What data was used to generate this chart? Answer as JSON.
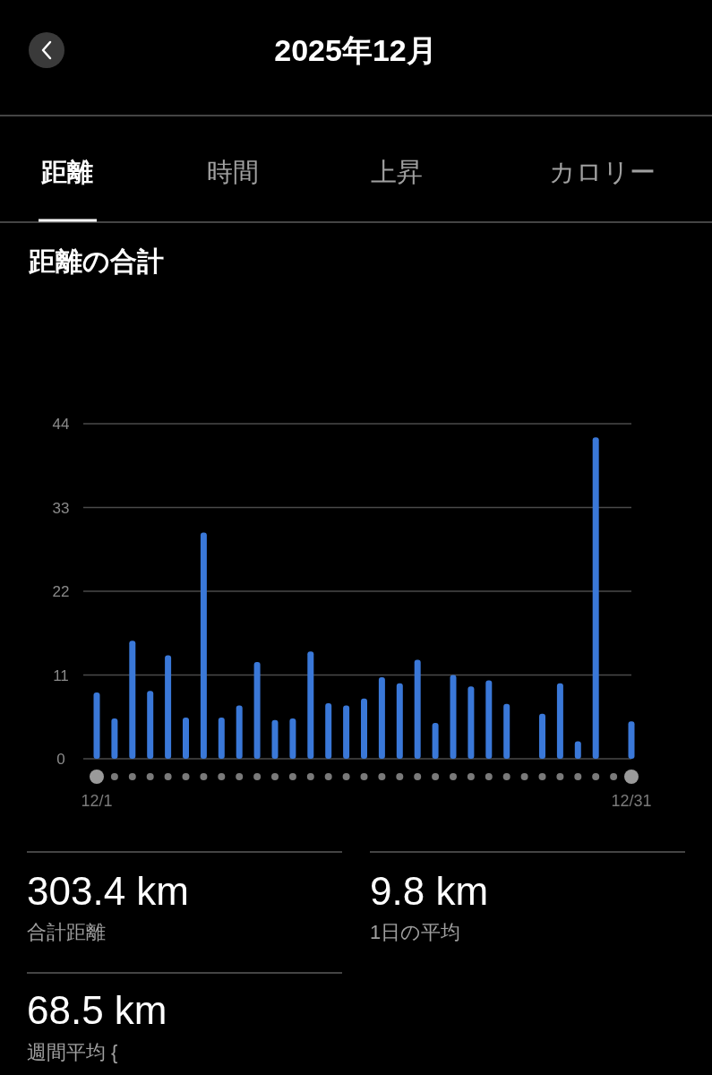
{
  "chart_data": {
    "type": "bar",
    "title": "距離の合計",
    "subtitle": "2025年12月",
    "categories": [
      "12/1",
      null,
      null,
      null,
      null,
      null,
      null,
      null,
      null,
      null,
      null,
      null,
      null,
      null,
      null,
      null,
      null,
      null,
      null,
      null,
      null,
      null,
      null,
      null,
      null,
      null,
      null,
      null,
      null,
      null,
      "12/31"
    ],
    "values": [
      8.7,
      5.3,
      15.5,
      8.9,
      13.6,
      5.4,
      29.7,
      5.4,
      7.0,
      12.7,
      5.1,
      5.3,
      14.1,
      7.3,
      7.0,
      7.9,
      10.7,
      9.9,
      13.0,
      4.7,
      11.0,
      9.5,
      10.3,
      7.2,
      0,
      5.9,
      9.9,
      2.3,
      42.2,
      0,
      4.9
    ],
    "color": "#3a78d8",
    "ylim": [
      0,
      44
    ],
    "yticks": [
      0,
      11,
      22,
      33,
      44
    ],
    "grid": "y",
    "annotations": [
      "距離",
      "時間",
      "上昇",
      "カロリー",
      "303.4 km",
      "合計距離",
      "9.8 km",
      "1日の平均",
      "68.5 km",
      "週間平均 {"
    ]
  }
}
